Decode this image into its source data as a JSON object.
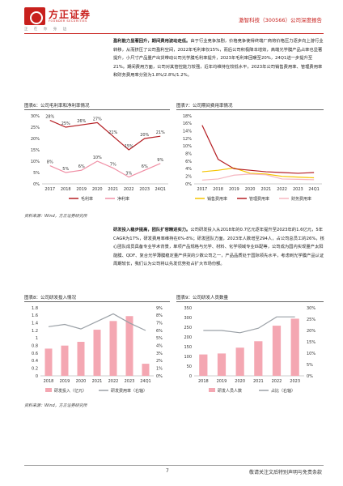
{
  "header": {
    "logo_cn": "方正证券",
    "logo_en": "FOUNDER SECURITIES",
    "slogan": "正 在 你 身 边",
    "report_tag": "激智科技（300566）公司深度报告"
  },
  "para1": {
    "bold": "盈利能力显著回升，期间费用波动走低。",
    "text": "由于行业竞争加剧，价格竞争使得终端厂商将价格压力逐步向上游行业转移，从而挤压了公司盈利空间，2022年毛利率仅15%，而后公司积极降本增效，高端光学膜产品占率也显著提升，小尺寸产品量产出货带动公司光学膜毛利率提升，2023年毛利率回暖至20%，24Q1进一步提升至21%。期间费用方面，公司对其管控能力较强，近年均维持在较低水平，2023年公司销售费用率、管理费用率和财务费用率分别为1.8%/2.8%/1.2%。"
  },
  "fig6": {
    "title": "图表6：公司毛利率和净利率情况",
    "source": "资料来源：Wind，方正证券研究所"
  },
  "fig7": {
    "title": "图表7：公司期间费用率情况",
    "source": "资料来源：Wind，方正证券研究所"
  },
  "para2": {
    "bold": "研发投入稳步提高，团队扩容精进实力。",
    "text": "公司研发投入从2018年的0.7亿元逐年提升至2023年的1.6亿元，5年CAGR为17%，研发费用率维持在6%-8%；研发团队方面，2023年人数增至294人，占公司总员工的26%，核心团队成员具备专业学术背景，单项产品规格与光学、材料、化学领域专业匹配等，公司成为国内实现量产太阳能膜、QDF、复合光学薄膜稳定量产供货的少数公司之一，产品品质处于国际领先水平，考虑到光学膜产品认证周期较长，我们认为公司将以先发优势抢占扩大市场份额。"
  },
  "fig8": {
    "title": "图表8：公司研发投入情况",
    "source": "资料来源：Wind，方正证券研究所"
  },
  "fig9": {
    "title": "图表9：公司研发人员数量",
    "source": "资料来源：Wind，方正证券研究所"
  },
  "chart_data": [
    {
      "type": "line",
      "x": [
        "2017",
        "2018",
        "2019",
        "2020",
        "2021",
        "2022",
        "2023",
        "24Q1"
      ],
      "series": [
        {
          "name": "毛利率",
          "color": "#b51f24",
          "values": [
            28,
            25,
            26,
            27,
            21,
            15,
            20,
            21
          ],
          "labels": [
            "28%",
            "25%",
            "26%",
            "27%",
            "21%",
            "15%",
            "20%",
            "21%"
          ]
        },
        {
          "name": "净利率",
          "color": "#f08fa5",
          "values": [
            8,
            5,
            6,
            10,
            7,
            3,
            6,
            9
          ],
          "labels": [
            "8%",
            "5%",
            "6%",
            "10%",
            "7%",
            "3%",
            "6%",
            "9%"
          ]
        }
      ],
      "ylim": [
        0,
        30
      ],
      "yticks": [
        "0%",
        "5%",
        "10%",
        "15%",
        "20%",
        "25%",
        "30%"
      ]
    },
    {
      "type": "line",
      "x": [
        "2017",
        "2018",
        "2019",
        "2020",
        "2021",
        "2022",
        "2023",
        "24Q1"
      ],
      "series": [
        {
          "name": "销售费用率",
          "color": "#f5c400",
          "values": [
            3.2,
            3.6,
            4.2,
            2.8,
            2.6,
            2.0,
            1.8,
            1.6
          ]
        },
        {
          "name": "管理费用率",
          "color": "#b51f24",
          "values": [
            15.5,
            6.5,
            4.0,
            3.6,
            3.2,
            3.0,
            2.8,
            3.0
          ]
        },
        {
          "name": "财务费用率",
          "color": "#f5b7c1",
          "values": [
            1.0,
            1.3,
            2.3,
            2.6,
            2.4,
            1.3,
            1.2,
            1.1
          ]
        }
      ],
      "ylim": [
        0,
        18
      ],
      "yticks": [
        "0%",
        "2%",
        "4%",
        "6%",
        "8%",
        "10%",
        "12%",
        "14%",
        "16%",
        "18%"
      ]
    },
    {
      "type": "bar",
      "categories": [
        "2018",
        "2019",
        "2020",
        "2021",
        "2022",
        "2023",
        "24Q1"
      ],
      "series": [
        {
          "name": "研发投入（亿元）",
          "color": "#f4a7b2",
          "values": [
            0.72,
            0.8,
            0.9,
            1.22,
            1.45,
            1.58,
            0.32
          ]
        },
        {
          "name": "研发费用率（右轴）",
          "color": "#9aa0a6",
          "values": [
            6.5,
            6.8,
            6.2,
            7.2,
            8.2,
            7.0,
            6.0
          ]
        }
      ],
      "ylim": [
        0,
        1.8
      ],
      "yticks": [
        "0",
        "0.2",
        "0.4",
        "0.6",
        "0.8",
        "1",
        "1.2",
        "1.4",
        "1.6",
        "1.8"
      ],
      "y2lim": [
        0,
        9
      ],
      "y2ticks": [
        "0%",
        "1%",
        "2%",
        "3%",
        "4%",
        "5%",
        "6%",
        "7%",
        "8%",
        "9%"
      ]
    },
    {
      "type": "bar",
      "categories": [
        "2018",
        "2019",
        "2020",
        "2021",
        "2022",
        "2023"
      ],
      "series": [
        {
          "name": "研发人员人数",
          "color": "#f4a7b2",
          "values": [
            110,
            115,
            145,
            178,
            258,
            294
          ]
        },
        {
          "name": "占比（右轴）",
          "color": "#9aa0a6",
          "values": [
            20,
            20,
            19,
            21,
            26,
            26
          ]
        }
      ],
      "ylim": [
        0,
        350
      ],
      "yticks": [
        "0",
        "50",
        "100",
        "150",
        "200",
        "250",
        "300",
        "350"
      ],
      "y2lim": [
        0,
        30
      ],
      "y2ticks": [
        "0%",
        "5%",
        "10%",
        "15%",
        "20%",
        "25%",
        "30%"
      ]
    }
  ],
  "footer": {
    "page": "7",
    "disclaimer": "敬请关注文后特别声明与免责条款"
  }
}
